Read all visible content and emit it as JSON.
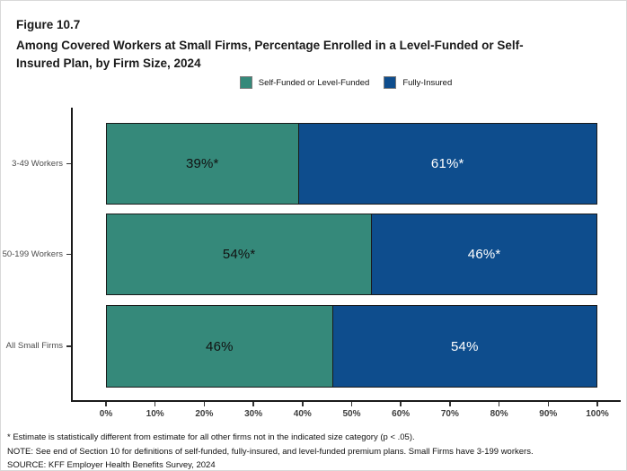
{
  "figure": {
    "label": "Figure 10.7",
    "title": "Among Covered Workers at Small Firms, Percentage Enrolled in a Level-Funded or Self-Insured Plan, by Firm Size, 2024"
  },
  "legend": [
    {
      "label": "Self-Funded or Level-Funded",
      "color": "#35897a"
    },
    {
      "label": "Fully-Insured",
      "color": "#0e4d8d"
    }
  ],
  "chart_data": {
    "type": "bar",
    "orientation": "horizontal",
    "stacked": true,
    "title": "Among Covered Workers at Small Firms, Percentage Enrolled in a Level-Funded or Self-Insured Plan, by Firm Size, 2024",
    "categories": [
      "3-49 Workers",
      "50-199 Workers",
      "All Small Firms"
    ],
    "series": [
      {
        "name": "Self-Funded or Level-Funded",
        "color": "#35897a",
        "values": [
          39,
          54,
          46
        ],
        "labels": [
          "39%*",
          "54%*",
          "46%"
        ]
      },
      {
        "name": "Fully-Insured",
        "color": "#0e4d8d",
        "values": [
          61,
          46,
          54
        ],
        "labels": [
          "61%*",
          "46%*",
          "54%"
        ]
      }
    ],
    "xlim": [
      0,
      100
    ],
    "x_ticks": [
      "0%",
      "10%",
      "20%",
      "30%",
      "40%",
      "50%",
      "60%",
      "70%",
      "80%",
      "90%",
      "100%"
    ],
    "legend_position": "top",
    "grid": false
  },
  "footnotes": [
    "* Estimate is statistically different from estimate for all other firms not in the indicated size category (p < .05).",
    "NOTE: See end of Section 10 for definitions of self-funded, fully-insured, and level-funded premium plans. Small Firms have 3-199 workers.",
    "SOURCE: KFF Employer Health Benefits Survey, 2024"
  ]
}
